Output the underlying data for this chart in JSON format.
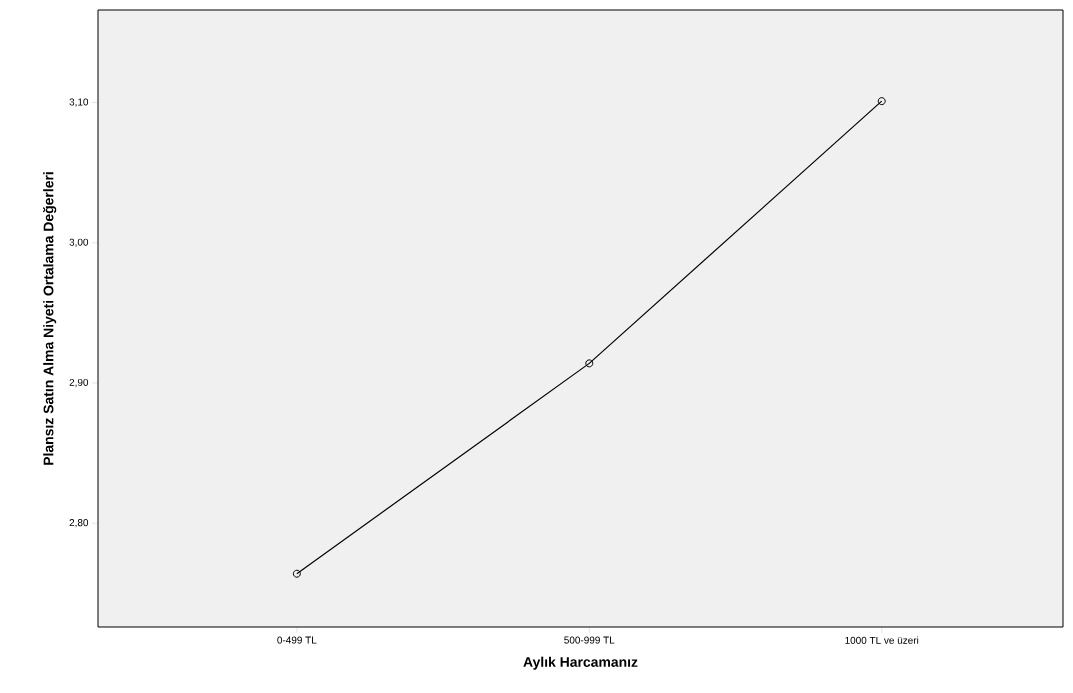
{
  "chart_data": {
    "type": "line",
    "xlabel": "Aylık Harcamanız",
    "ylabel": "Plansız Satın Alma Niyeti Ortalama Değerleri",
    "categories": [
      "0-499 TL",
      "500-999 TL",
      "1000 TL ve üzeri"
    ],
    "values": [
      2.764,
      2.914,
      3.101
    ],
    "color": "#000000",
    "marker": "circle",
    "line_style": "solid",
    "grid": false,
    "ylim": [
      2.726,
      3.166
    ],
    "yticks": [
      {
        "value": 2.8,
        "label": "2,80"
      },
      {
        "value": 2.9,
        "label": "2,90"
      },
      {
        "value": 3.0,
        "label": "3,00"
      },
      {
        "value": 3.1,
        "label": "3,10"
      }
    ]
  }
}
